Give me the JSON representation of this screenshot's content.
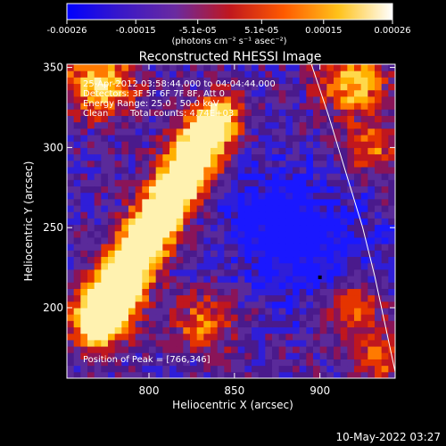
{
  "chart_data": {
    "type": "heatmap",
    "title": "Reconstructed RHESSI Image",
    "xlabel": "Heliocentric X (arcsec)",
    "ylabel": "Heliocentric Y (arcsec)",
    "xlim": [
      752,
      944
    ],
    "ylim": [
      156,
      352
    ],
    "xticks": [
      800,
      850,
      900
    ],
    "yticks": [
      200,
      250,
      300,
      350
    ],
    "grid": false,
    "colorbar": {
      "position": "top",
      "range": [
        -0.00026,
        0.00026
      ],
      "tick_values": [
        -0.00026,
        -0.00015,
        -5.1e-05,
        5.1e-05,
        0.00015,
        0.00026
      ],
      "tick_labels": [
        "-0.00026",
        "-0.00015",
        "-5.1e-05",
        "5.1e-05",
        "0.00015",
        "0.00026"
      ],
      "unit_label": "(photons cm⁻² s⁻¹ asec⁻²)",
      "stops": [
        "#0000ff",
        "#3a18c8",
        "#6a2aa0",
        "#c0171e",
        "#ff5a00",
        "#ffc21a",
        "#ffffff"
      ]
    },
    "annotations": {
      "time_range": "25-Apr-2012 03:58:44.000 to 04:04:44.000",
      "detectors": "Detectors: 3F 5F 6F 7F 8F, Att 0",
      "energy_range": "Energy Range: 25.0 - 50.0 keV",
      "method": "Clean",
      "total_counts": "Total counts: 4.74E+03",
      "peak_position": "Position of Peak = [766,346]"
    },
    "peak": [
      766,
      346
    ],
    "limb_curve": [
      [
        895,
        352
      ],
      [
        905,
        320
      ],
      [
        915,
        285
      ],
      [
        925,
        250
      ],
      [
        932,
        220
      ],
      [
        938,
        190
      ],
      [
        944,
        160
      ]
    ],
    "marker": [
      900,
      219
    ]
  },
  "footer": {
    "date": "10-May-2022 03:27"
  },
  "colors": {
    "background": "#000000",
    "text": "#ffffff",
    "limb": "#ffffff"
  }
}
